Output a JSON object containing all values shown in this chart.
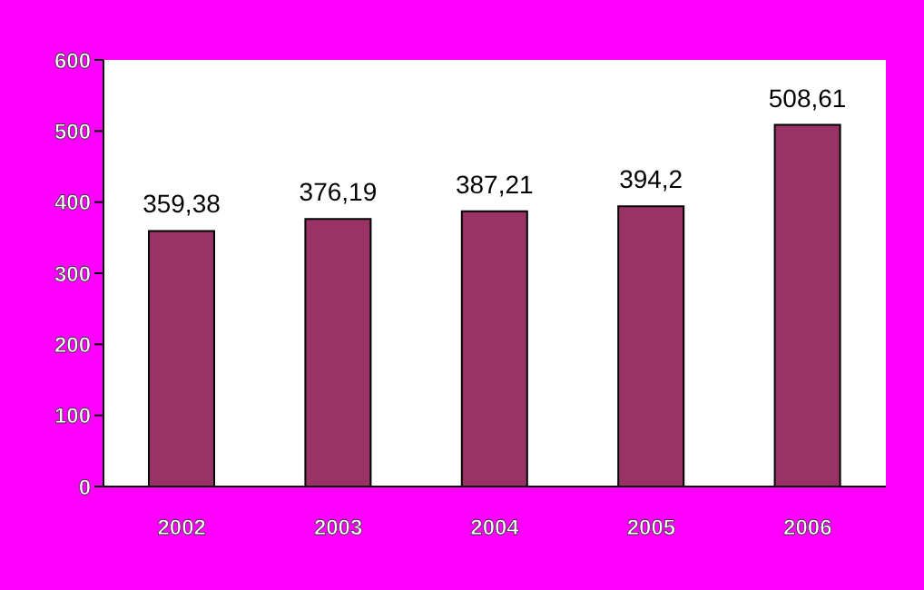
{
  "chart_data": {
    "type": "bar",
    "categories": [
      "2002",
      "2003",
      "2004",
      "2005",
      "2006"
    ],
    "values": [
      359.38,
      376.19,
      387.21,
      394.2,
      508.61
    ],
    "value_labels": [
      "359,38",
      "376,19",
      "387,21",
      "394,2",
      "508,61"
    ],
    "color": "#993366",
    "ylim": [
      0,
      600
    ],
    "yticks": [
      0,
      100,
      200,
      300,
      400,
      500,
      600
    ],
    "grid": false,
    "legend": false
  }
}
